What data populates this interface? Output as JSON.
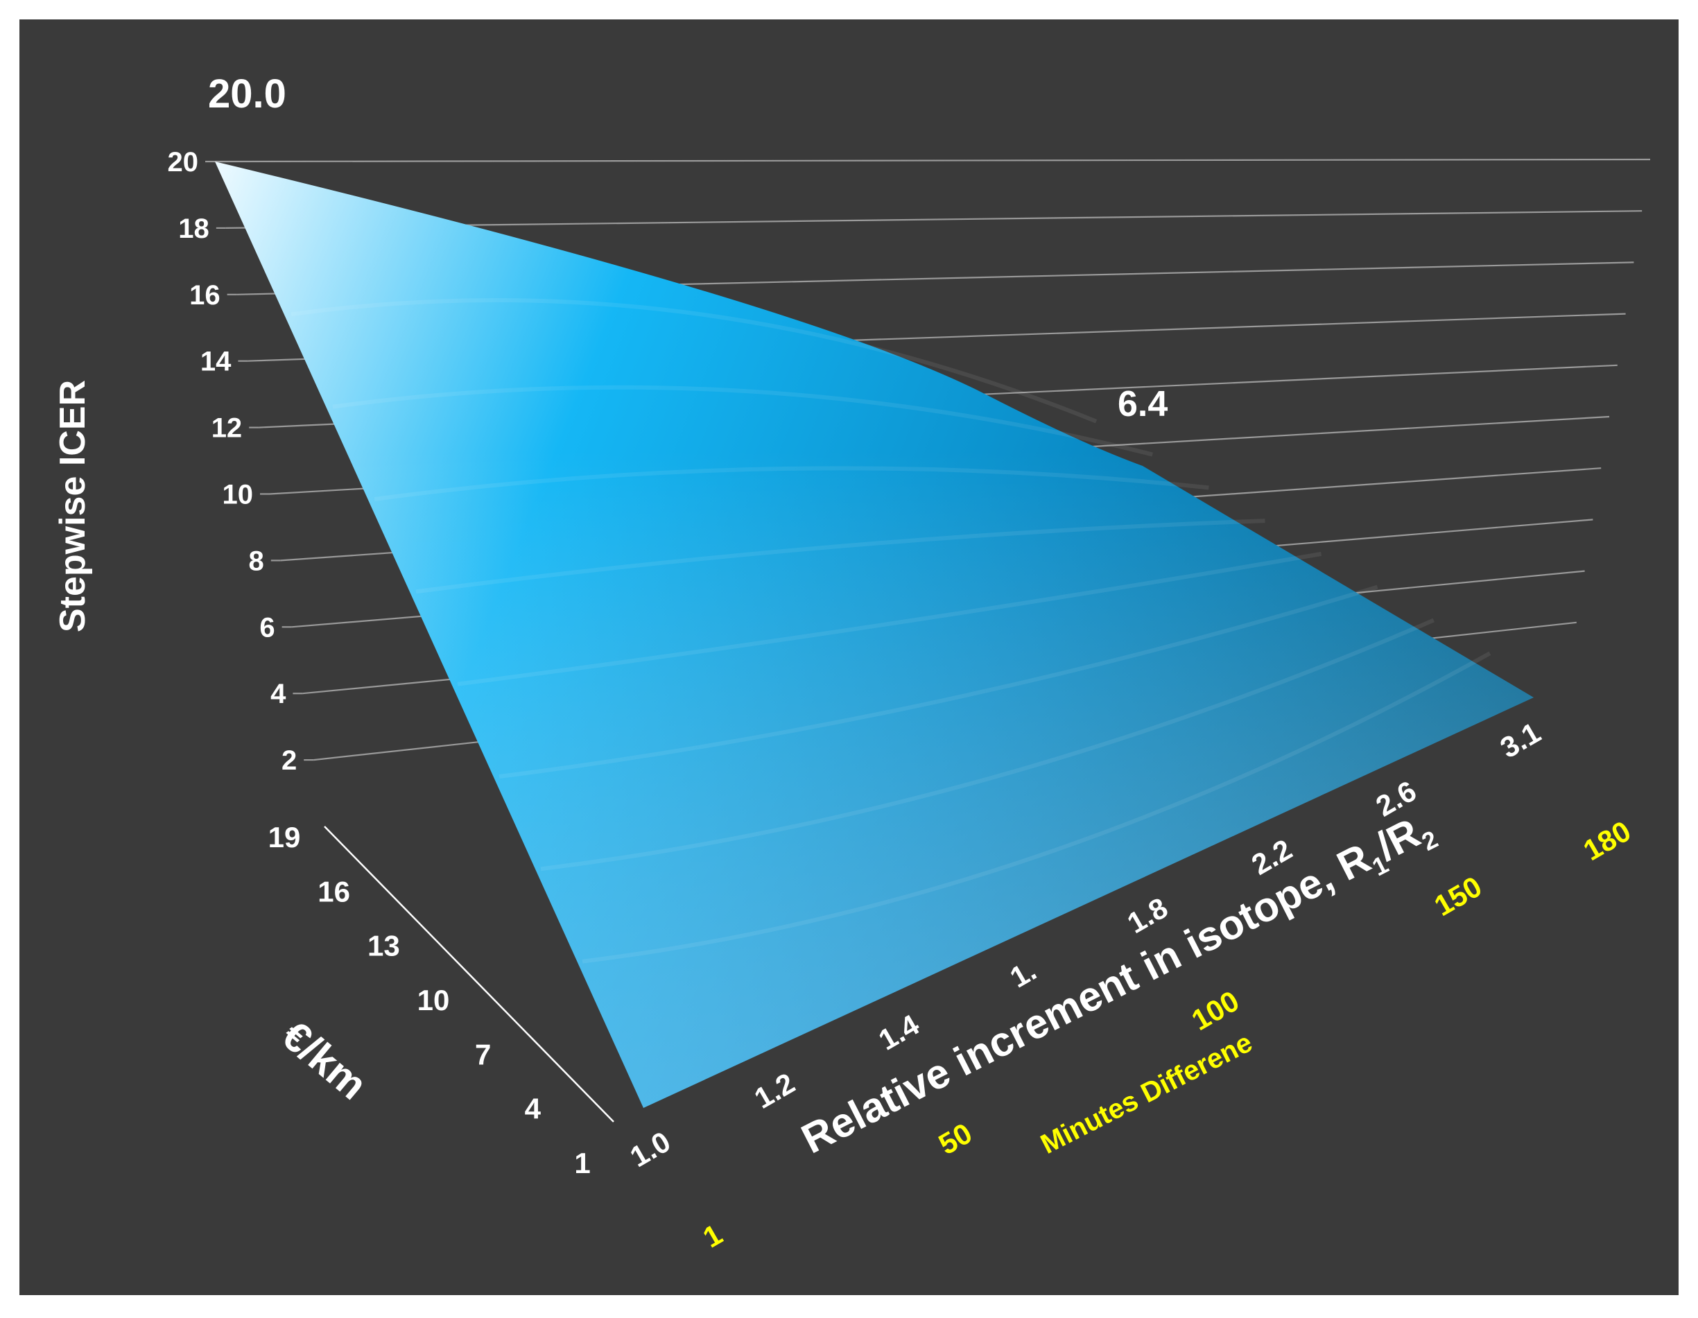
{
  "chart_data": {
    "type": "surface",
    "title": "",
    "z_axis": {
      "label": "Stepwise ICER",
      "ticks": [
        "20",
        "18",
        "16",
        "14",
        "12",
        "10",
        "8",
        "6",
        "4",
        "2"
      ],
      "range": [
        0,
        20
      ],
      "grid": true
    },
    "y_axis": {
      "label": "€/km",
      "ticks": [
        "19",
        "16",
        "13",
        "10",
        "7",
        "4",
        "1"
      ]
    },
    "x_axis": {
      "label_text": "Relative increment in isotope, R",
      "label_sub1": "1",
      "label_mid": "/R",
      "label_sub2": "2",
      "ticks": [
        "1.0",
        "1.2",
        "1.4",
        "1.",
        "1.8",
        "2.2",
        "2.6",
        "3.1"
      ]
    },
    "secondary_axis": {
      "label": "Minutes Differene",
      "ticks": [
        "1",
        "50",
        "100",
        "150",
        "180"
      ]
    },
    "annotations": [
      {
        "text": "20.0",
        "value": 20.0
      },
      {
        "text": "6.4",
        "value": 6.4
      }
    ],
    "surface_corners": [
      {
        "ratio": 1.0,
        "eur_km": 19,
        "icer": 20.0
      },
      {
        "ratio": 3.1,
        "eur_km": 19,
        "icer": 6.4
      },
      {
        "ratio": 3.1,
        "eur_km": 1,
        "icer": 0
      },
      {
        "ratio": 1.0,
        "eur_km": 1,
        "icer": 0
      }
    ],
    "colors": {
      "background": "#3a3a3a",
      "frame": "#ffffff",
      "text": "#ffffff",
      "secondary_text": "#ffff00",
      "gridline": "#9a9a9a",
      "surface_light": "#e6f7ff",
      "surface_mid": "#1ab3f0",
      "surface_dark": "#006a9a"
    }
  }
}
